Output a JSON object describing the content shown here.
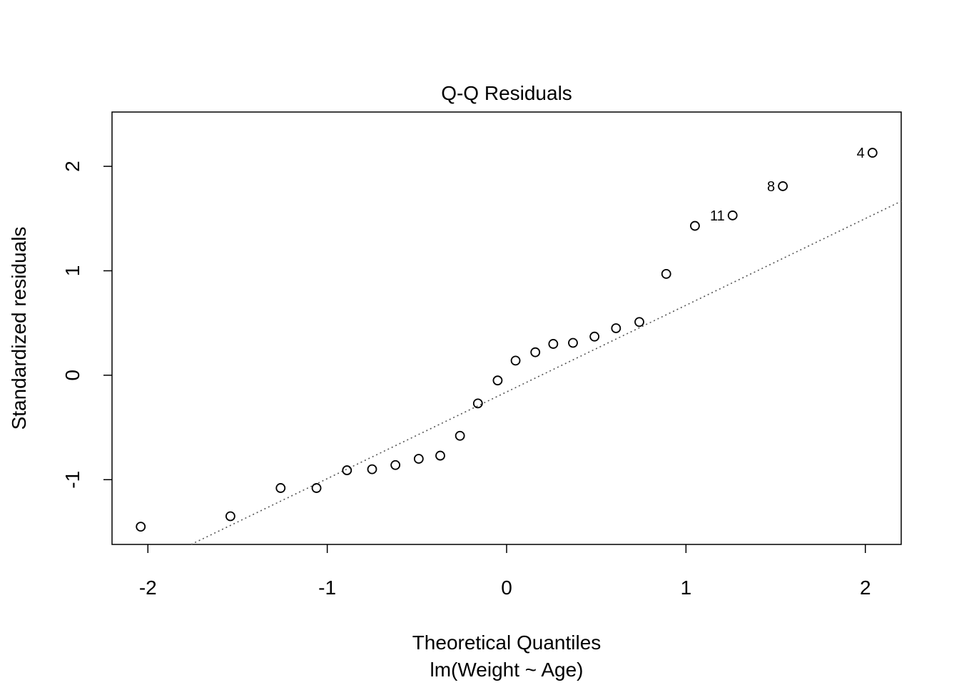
{
  "chart_data": {
    "type": "scatter",
    "title": "Q-Q Residuals",
    "xlabel": "Theoretical Quantiles",
    "subtitle": "lm(Weight ~ Age)",
    "ylabel": "Standardized residuals",
    "xlim": [
      -2.2,
      2.2
    ],
    "ylim": [
      -1.62,
      2.52
    ],
    "xticks": [
      -2,
      -1,
      0,
      1,
      2
    ],
    "yticks": [
      -1,
      0,
      1,
      2
    ],
    "xtick_labels": [
      "-2",
      "-1",
      "0",
      "1",
      "2"
    ],
    "ytick_labels": [
      "-1",
      "0",
      "1",
      "2"
    ],
    "grid": false,
    "legend": "none",
    "points": [
      {
        "x": -2.04,
        "y": -1.45,
        "label": ""
      },
      {
        "x": -1.54,
        "y": -1.35,
        "label": ""
      },
      {
        "x": -1.26,
        "y": -1.08,
        "label": ""
      },
      {
        "x": -1.06,
        "y": -1.08,
        "label": ""
      },
      {
        "x": -0.89,
        "y": -0.91,
        "label": ""
      },
      {
        "x": -0.75,
        "y": -0.9,
        "label": ""
      },
      {
        "x": -0.62,
        "y": -0.86,
        "label": ""
      },
      {
        "x": -0.49,
        "y": -0.8,
        "label": ""
      },
      {
        "x": -0.37,
        "y": -0.77,
        "label": ""
      },
      {
        "x": -0.26,
        "y": -0.58,
        "label": ""
      },
      {
        "x": -0.16,
        "y": -0.27,
        "label": ""
      },
      {
        "x": -0.05,
        "y": -0.05,
        "label": ""
      },
      {
        "x": 0.05,
        "y": 0.14,
        "label": ""
      },
      {
        "x": 0.16,
        "y": 0.22,
        "label": ""
      },
      {
        "x": 0.26,
        "y": 0.3,
        "label": ""
      },
      {
        "x": 0.37,
        "y": 0.31,
        "label": ""
      },
      {
        "x": 0.49,
        "y": 0.37,
        "label": ""
      },
      {
        "x": 0.61,
        "y": 0.45,
        "label": ""
      },
      {
        "x": 0.74,
        "y": 0.51,
        "label": ""
      },
      {
        "x": 0.89,
        "y": 0.97,
        "label": ""
      },
      {
        "x": 1.05,
        "y": 1.43,
        "label": ""
      },
      {
        "x": 1.26,
        "y": 1.53,
        "label": "11"
      },
      {
        "x": 1.54,
        "y": 1.81,
        "label": "8"
      },
      {
        "x": 2.04,
        "y": 2.13,
        "label": "4"
      }
    ],
    "reference_line": {
      "slope": 0.83,
      "intercept": -0.16,
      "style": "dotted",
      "color": "#555555"
    },
    "colors": {
      "point_stroke": "#000000",
      "frame": "#000000",
      "reference_line": "#555555"
    }
  }
}
